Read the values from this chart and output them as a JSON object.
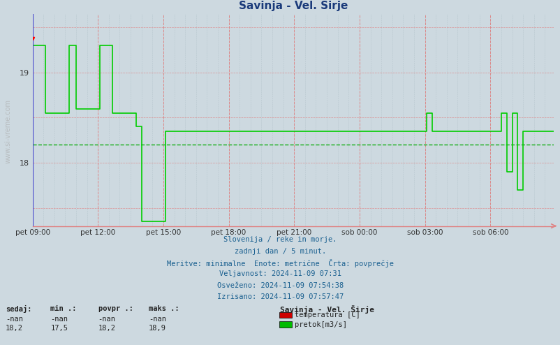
{
  "title": "Savinja - Vel. Širje",
  "title_color": "#1a3a7a",
  "bg_color": "#cdd9e0",
  "plot_bg_color": "#cdd9e0",
  "xlabel_ticks": [
    "pet 09:00",
    "pet 12:00",
    "pet 15:00",
    "pet 18:00",
    "pet 21:00",
    "sob 00:00",
    "sob 03:00",
    "sob 06:00"
  ],
  "avg_line_value": 18.2,
  "footer_lines": [
    "Slovenija / reke in morje.",
    "zadnji dan / 5 minut.",
    "Meritve: minimalne  Enote: metrične  Črta: povprečje",
    "Veljavnost: 2024-11-09 07:31",
    "Osveženo: 2024-11-09 07:54:38",
    "Izrisano: 2024-11-09 07:57:47"
  ],
  "footer_color": "#1a6090",
  "legend_title": "Savinja - Vel. Širje",
  "legend_rows": [
    {
      "label": "temperatura [C]",
      "color": "#cc0000"
    },
    {
      "label": "pretok[m3/s]",
      "color": "#00bb00"
    }
  ],
  "stats_headers": [
    "sedaj:",
    "min .:",
    "povpr .:",
    "maks .:"
  ],
  "stats_row1": [
    "-nan",
    "-nan",
    "-nan",
    "-nan"
  ],
  "stats_row2": [
    "18,2",
    "17,5",
    "18,2",
    "18,9"
  ],
  "green_line_color": "#00cc00",
  "avg_line_color": "#00aa00",
  "red_grid_color": "#e08080",
  "minor_grid_color": "#b0c0c8",
  "blue_axis_color": "#4444cc",
  "tick_positions_x": [
    0,
    36,
    72,
    108,
    144,
    180,
    216,
    252
  ],
  "n_points": 288,
  "ylim": [
    17.3,
    19.65
  ],
  "ytick_vals": [
    18.0,
    19.0
  ],
  "ytick_labels": [
    "18",
    "19"
  ]
}
